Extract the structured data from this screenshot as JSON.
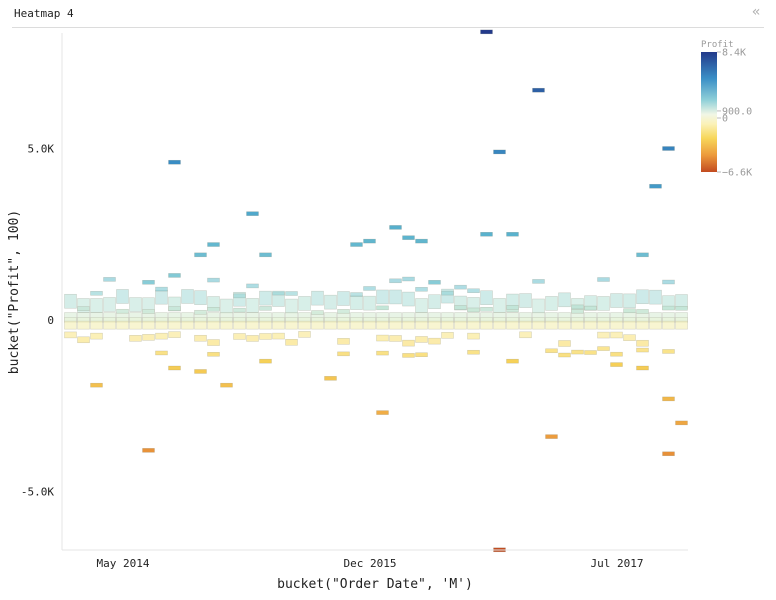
{
  "header": {
    "title": "Heatmap 4",
    "collapse_icon": "double-chevron-left-icon"
  },
  "chart_data": {
    "type": "heatmap",
    "title": "Heatmap 4",
    "xlabel": "bucket(\"Order Date\", 'M')",
    "ylabel": "bucket(\"Profit\", 100)",
    "x_ticks": [
      {
        "label": "May 2014",
        "month": 4
      },
      {
        "label": "Dec 2015",
        "month": 23
      },
      {
        "label": "Jul 2017",
        "month": 42
      }
    ],
    "y_ticks": [
      {
        "label": "5.0K",
        "value": 5000
      },
      {
        "label": "0",
        "value": 0
      },
      {
        "label": "-5.0K",
        "value": -5000
      }
    ],
    "x_range_months": [
      0,
      48
    ],
    "y_range": [
      -6700,
      8400
    ],
    "bucket_height": 100,
    "legend": {
      "title": "Profit",
      "ticks": [
        "8.4K",
        "900.0",
        "0",
        "−6.6K"
      ],
      "max": 8400,
      "mid": 900,
      "min": -6600,
      "colors": [
        "#233a8b",
        "#3a8fc6",
        "#8fd0d8",
        "#e8f3dc",
        "#fbf2b8",
        "#f7d65a",
        "#ec9a3c",
        "#c24b20"
      ]
    },
    "outliers": [
      {
        "month": 32,
        "profit": 8400
      },
      {
        "month": 36,
        "profit": 6700
      },
      {
        "month": 46,
        "profit": 5000
      },
      {
        "month": 33,
        "profit": 4900
      },
      {
        "month": 8,
        "profit": 4600
      },
      {
        "month": 45,
        "profit": 3900
      },
      {
        "month": 14,
        "profit": 3100
      },
      {
        "month": 25,
        "profit": 2700
      },
      {
        "month": 32,
        "profit": 2500
      },
      {
        "month": 34,
        "profit": 2500
      },
      {
        "month": 26,
        "profit": 2400
      },
      {
        "month": 23,
        "profit": 2300
      },
      {
        "month": 22,
        "profit": 2200
      },
      {
        "month": 27,
        "profit": 2300
      },
      {
        "month": 11,
        "profit": 2200
      },
      {
        "month": 10,
        "profit": 1900
      },
      {
        "month": 15,
        "profit": 1900
      },
      {
        "month": 44,
        "profit": 1900
      },
      {
        "month": 28,
        "profit": 1100
      },
      {
        "month": 6,
        "profit": 1100
      },
      {
        "month": 8,
        "profit": 1300
      },
      {
        "month": 2,
        "profit": -1900
      },
      {
        "month": 12,
        "profit": -1900
      },
      {
        "month": 20,
        "profit": -1700
      },
      {
        "month": 24,
        "profit": -2700
      },
      {
        "month": 37,
        "profit": -3400
      },
      {
        "month": 6,
        "profit": -3800
      },
      {
        "month": 46,
        "profit": -2300
      },
      {
        "month": 47,
        "profit": -3000
      },
      {
        "month": 46,
        "profit": -3900
      },
      {
        "month": 33,
        "profit": -6700
      },
      {
        "month": 10,
        "profit": -1500
      },
      {
        "month": 8,
        "profit": -1400
      },
      {
        "month": 42,
        "profit": -1300
      },
      {
        "month": 44,
        "profit": -1400
      },
      {
        "month": 34,
        "profit": -1200
      },
      {
        "month": 15,
        "profit": -1200
      }
    ]
  }
}
